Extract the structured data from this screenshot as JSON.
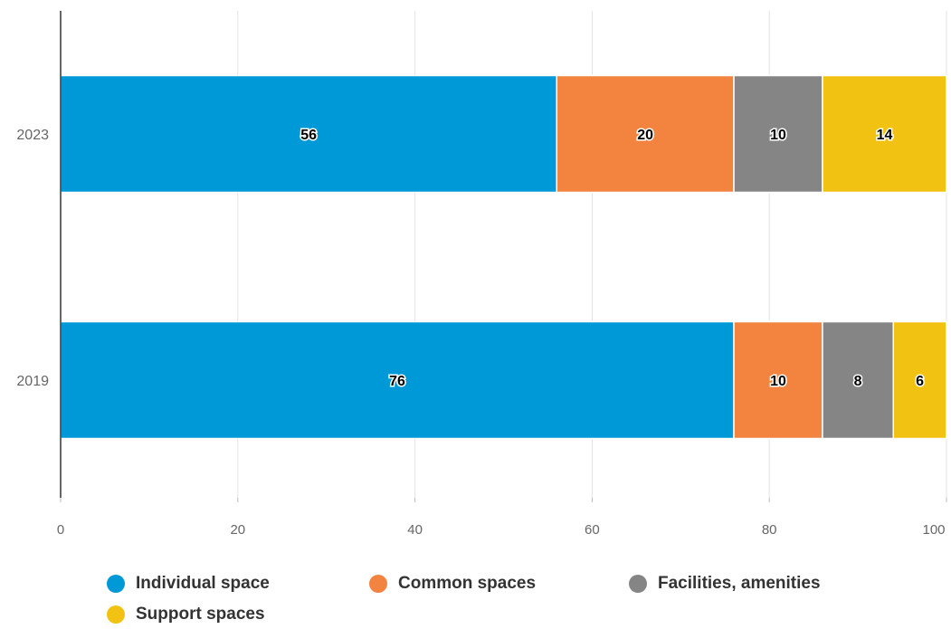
{
  "chart_data": {
    "type": "bar",
    "orientation": "horizontal",
    "stacked": true,
    "categories": [
      "2023",
      "2019"
    ],
    "series": [
      {
        "name": "Individual space",
        "values": [
          56,
          76
        ],
        "color": "#0099D8"
      },
      {
        "name": "Common spaces",
        "values": [
          20,
          10
        ],
        "color": "#F38440"
      },
      {
        "name": "Facilities, amenities",
        "values": [
          10,
          8
        ],
        "color": "#858585"
      },
      {
        "name": "Support spaces",
        "values": [
          14,
          6
        ],
        "color": "#F2C212"
      }
    ],
    "xlim": [
      0,
      100
    ],
    "xticks": [
      "0",
      "20",
      "40",
      "60",
      "80",
      "100"
    ],
    "grid": true,
    "legend": "bottom",
    "data_labels": true
  }
}
